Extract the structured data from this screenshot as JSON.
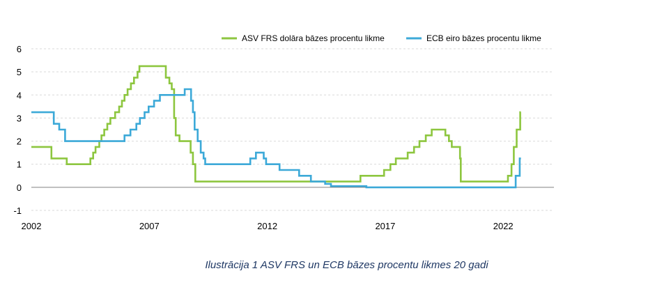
{
  "caption": "Ilustrācija 1 ASV FRS un ECB bāzes procentu likmes 20 gadi",
  "chart_data": {
    "type": "line",
    "xlim": [
      2002,
      2024.15
    ],
    "ylim": [
      -1,
      6
    ],
    "xticks": [
      "2002",
      "2007",
      "2012",
      "2017",
      "2022"
    ],
    "yticks": [
      "-1",
      "0",
      "1",
      "2",
      "3",
      "4",
      "5",
      "6"
    ],
    "grid": "horizontal dashed",
    "legend_position": "top-right",
    "colors": {
      "fed": "#8dc63f",
      "ecb": "#3ca9d8",
      "grid": "#d9d9d9",
      "axis": "#808080"
    },
    "series": [
      {
        "name": "ASV FRS dolāra bāzes procentu likme",
        "color": "#8dc63f",
        "points": [
          [
            2002.0,
            1.75
          ],
          [
            2002.85,
            1.75
          ],
          [
            2002.85,
            1.25
          ],
          [
            2003.5,
            1.25
          ],
          [
            2003.5,
            1.0
          ],
          [
            2004.5,
            1.0
          ],
          [
            2004.5,
            1.25
          ],
          [
            2004.62,
            1.25
          ],
          [
            2004.62,
            1.5
          ],
          [
            2004.72,
            1.5
          ],
          [
            2004.72,
            1.75
          ],
          [
            2004.88,
            1.75
          ],
          [
            2004.88,
            2.0
          ],
          [
            2004.97,
            2.0
          ],
          [
            2004.97,
            2.25
          ],
          [
            2005.09,
            2.25
          ],
          [
            2005.09,
            2.5
          ],
          [
            2005.22,
            2.5
          ],
          [
            2005.22,
            2.75
          ],
          [
            2005.35,
            2.75
          ],
          [
            2005.35,
            3.0
          ],
          [
            2005.55,
            3.0
          ],
          [
            2005.55,
            3.25
          ],
          [
            2005.72,
            3.25
          ],
          [
            2005.72,
            3.5
          ],
          [
            2005.84,
            3.5
          ],
          [
            2005.84,
            3.75
          ],
          [
            2005.95,
            3.75
          ],
          [
            2005.95,
            4.0
          ],
          [
            2006.08,
            4.0
          ],
          [
            2006.08,
            4.25
          ],
          [
            2006.22,
            4.25
          ],
          [
            2006.22,
            4.5
          ],
          [
            2006.35,
            4.5
          ],
          [
            2006.35,
            4.75
          ],
          [
            2006.5,
            4.75
          ],
          [
            2006.5,
            5.0
          ],
          [
            2006.58,
            5.0
          ],
          [
            2006.58,
            5.25
          ],
          [
            2007.7,
            5.25
          ],
          [
            2007.7,
            4.75
          ],
          [
            2007.85,
            4.75
          ],
          [
            2007.85,
            4.5
          ],
          [
            2007.95,
            4.5
          ],
          [
            2007.95,
            4.25
          ],
          [
            2008.05,
            4.25
          ],
          [
            2008.05,
            3.0
          ],
          [
            2008.12,
            3.0
          ],
          [
            2008.12,
            2.25
          ],
          [
            2008.28,
            2.25
          ],
          [
            2008.28,
            2.0
          ],
          [
            2008.75,
            2.0
          ],
          [
            2008.75,
            1.5
          ],
          [
            2008.85,
            1.5
          ],
          [
            2008.85,
            1.0
          ],
          [
            2008.95,
            1.0
          ],
          [
            2008.95,
            0.25
          ],
          [
            2015.95,
            0.25
          ],
          [
            2015.95,
            0.5
          ],
          [
            2016.95,
            0.5
          ],
          [
            2016.95,
            0.75
          ],
          [
            2017.22,
            0.75
          ],
          [
            2017.22,
            1.0
          ],
          [
            2017.45,
            1.0
          ],
          [
            2017.45,
            1.25
          ],
          [
            2017.95,
            1.25
          ],
          [
            2017.95,
            1.5
          ],
          [
            2018.22,
            1.5
          ],
          [
            2018.22,
            1.75
          ],
          [
            2018.45,
            1.75
          ],
          [
            2018.45,
            2.0
          ],
          [
            2018.72,
            2.0
          ],
          [
            2018.72,
            2.25
          ],
          [
            2018.97,
            2.25
          ],
          [
            2018.97,
            2.5
          ],
          [
            2019.55,
            2.5
          ],
          [
            2019.55,
            2.25
          ],
          [
            2019.7,
            2.25
          ],
          [
            2019.7,
            2.0
          ],
          [
            2019.82,
            2.0
          ],
          [
            2019.82,
            1.75
          ],
          [
            2020.17,
            1.75
          ],
          [
            2020.17,
            1.25
          ],
          [
            2020.2,
            1.25
          ],
          [
            2020.2,
            0.25
          ],
          [
            2022.2,
            0.25
          ],
          [
            2022.2,
            0.5
          ],
          [
            2022.35,
            0.5
          ],
          [
            2022.35,
            1.0
          ],
          [
            2022.45,
            1.0
          ],
          [
            2022.45,
            1.75
          ],
          [
            2022.57,
            1.75
          ],
          [
            2022.57,
            2.5
          ],
          [
            2022.72,
            2.5
          ],
          [
            2022.72,
            3.25
          ],
          [
            2022.75,
            3.25
          ]
        ]
      },
      {
        "name": "ECB eiro bāzes procentu likme",
        "color": "#3ca9d8",
        "points": [
          [
            2002.0,
            3.25
          ],
          [
            2002.95,
            3.25
          ],
          [
            2002.95,
            2.75
          ],
          [
            2003.18,
            2.75
          ],
          [
            2003.18,
            2.5
          ],
          [
            2003.43,
            2.5
          ],
          [
            2003.43,
            2.0
          ],
          [
            2005.95,
            2.0
          ],
          [
            2005.95,
            2.25
          ],
          [
            2006.2,
            2.25
          ],
          [
            2006.2,
            2.5
          ],
          [
            2006.45,
            2.5
          ],
          [
            2006.45,
            2.75
          ],
          [
            2006.6,
            2.75
          ],
          [
            2006.6,
            3.0
          ],
          [
            2006.8,
            3.0
          ],
          [
            2006.8,
            3.25
          ],
          [
            2006.97,
            3.25
          ],
          [
            2006.97,
            3.5
          ],
          [
            2007.2,
            3.5
          ],
          [
            2007.2,
            3.75
          ],
          [
            2007.45,
            3.75
          ],
          [
            2007.45,
            4.0
          ],
          [
            2008.5,
            4.0
          ],
          [
            2008.5,
            4.25
          ],
          [
            2008.77,
            4.25
          ],
          [
            2008.77,
            3.75
          ],
          [
            2008.85,
            3.75
          ],
          [
            2008.85,
            3.25
          ],
          [
            2008.92,
            3.25
          ],
          [
            2008.92,
            2.5
          ],
          [
            2009.05,
            2.5
          ],
          [
            2009.05,
            2.0
          ],
          [
            2009.18,
            2.0
          ],
          [
            2009.18,
            1.5
          ],
          [
            2009.3,
            1.5
          ],
          [
            2009.3,
            1.25
          ],
          [
            2009.37,
            1.25
          ],
          [
            2009.37,
            1.0
          ],
          [
            2011.28,
            1.0
          ],
          [
            2011.28,
            1.25
          ],
          [
            2011.52,
            1.25
          ],
          [
            2011.52,
            1.5
          ],
          [
            2011.85,
            1.5
          ],
          [
            2011.85,
            1.25
          ],
          [
            2011.95,
            1.25
          ],
          [
            2011.95,
            1.0
          ],
          [
            2012.52,
            1.0
          ],
          [
            2012.52,
            0.75
          ],
          [
            2013.35,
            0.75
          ],
          [
            2013.35,
            0.5
          ],
          [
            2013.85,
            0.5
          ],
          [
            2013.85,
            0.25
          ],
          [
            2014.45,
            0.25
          ],
          [
            2014.45,
            0.15
          ],
          [
            2014.7,
            0.15
          ],
          [
            2014.7,
            0.05
          ],
          [
            2016.2,
            0.05
          ],
          [
            2016.2,
            0.0
          ],
          [
            2022.53,
            0.0
          ],
          [
            2022.53,
            0.5
          ],
          [
            2022.7,
            0.5
          ],
          [
            2022.7,
            1.25
          ],
          [
            2022.75,
            1.25
          ]
        ]
      }
    ]
  }
}
